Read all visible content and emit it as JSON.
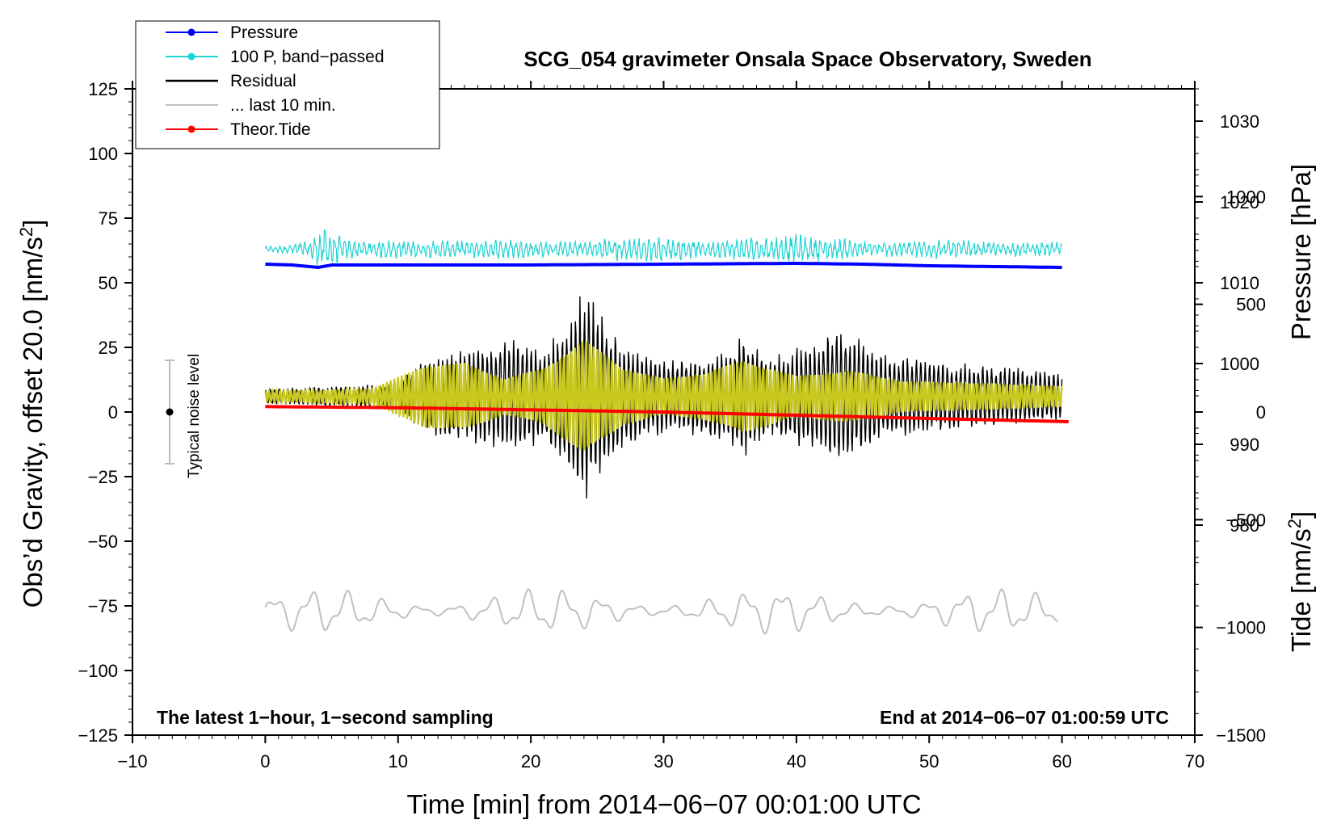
{
  "chart_data": {
    "type": "line",
    "title": "SCG_054 gravimeter Onsala Space Observatory, Sweden",
    "xlabel": "Time [min] from 2014−06−07 00:01:00 UTC",
    "ylabel_left": "Obs’d Gravity, offset 20.0 [nm/s²]",
    "ylabel_left_main": "Obs’d Gravity, offset 20.0 [nm/s",
    "ylabel_left_sup": "2",
    "ylabel_left_end": "]",
    "ylabel_pressure": "Pressure [hPa]",
    "ylabel_tide": "Tide [nm/s²]",
    "ylabel_tide_main": "Tide [nm/s",
    "ylabel_tide_sup": "2",
    "ylabel_tide_end": "]",
    "xlim": [
      -10,
      70
    ],
    "ylim_left": [
      -125,
      125
    ],
    "ylim_pressure": [
      954,
      1034
    ],
    "ylim_tide": [
      -1500,
      1500
    ],
    "x_ticks": [
      -10,
      0,
      10,
      20,
      30,
      40,
      50,
      60,
      70
    ],
    "x_tick_labels": [
      "−10",
      "0",
      "10",
      "20",
      "30",
      "40",
      "50",
      "60",
      "70"
    ],
    "y_ticks_left": [
      125,
      100,
      75,
      50,
      25,
      0,
      -25,
      -50,
      -75,
      -100,
      -125
    ],
    "y_tick_labels_left": [
      "125",
      "100",
      "75",
      "50",
      "25",
      "0",
      "−25",
      "−50",
      "−75",
      "−100",
      "−125"
    ],
    "y_ticks_pressure": [
      1030,
      1020,
      1010,
      1000,
      990,
      980
    ],
    "y_tick_labels_pressure": [
      "1030",
      "1020",
      "1010",
      "1000",
      "990",
      "980"
    ],
    "y_ticks_tide": [
      1000,
      500,
      0,
      -500,
      -1000,
      -1500
    ],
    "y_tick_labels_tide": [
      "1000",
      "500",
      "0",
      "−500",
      "−1000",
      "−1500"
    ],
    "legend": [
      {
        "label": "Pressure",
        "color": "#0000ff",
        "marker": true
      },
      {
        "label": "100 P, band−passed",
        "color": "#1fd3d3",
        "marker": true
      },
      {
        "label": "Residual",
        "color": "#000000",
        "marker": false
      },
      {
        "label": "... last 10 min.",
        "color": "#c0c0c0",
        "marker": false
      },
      {
        "label": "Theor.Tide",
        "color": "#ff0000",
        "marker": true
      }
    ],
    "legend_position": "top-left",
    "noise_bar": {
      "label": "Typical noise level",
      "x": -7.2,
      "center": 0,
      "low": -20,
      "high": 20
    },
    "annotation_left": "The latest 1−hour, 1−second sampling",
    "annotation_right": "End at 2014−06−07 01:00:59 UTC",
    "series": [
      {
        "name": "Pressure",
        "axis": "pressure",
        "color": "#0000ff",
        "x": [
          0,
          2,
          4,
          5,
          10,
          20,
          30,
          40,
          45,
          50,
          55,
          60
        ],
        "y": [
          1012.3,
          1012.2,
          1011.9,
          1012.2,
          1012.2,
          1012.2,
          1012.3,
          1012.4,
          1012.3,
          1012.1,
          1012.0,
          1011.9
        ]
      },
      {
        "name": "100 P, band−passed",
        "axis": "left",
        "color": "#1fd3d3",
        "offset": 63,
        "envelope_x": [
          0,
          3,
          4.5,
          6,
          12,
          18,
          24,
          26,
          30,
          33,
          40,
          46,
          50,
          55,
          60
        ],
        "envelope_y": [
          1.0,
          3.0,
          9.0,
          4.0,
          3.5,
          4.0,
          3.0,
          5.0,
          5.0,
          3.5,
          6.0,
          3.0,
          4.0,
          3.0,
          3.0
        ]
      },
      {
        "name": "Residual",
        "axis": "left",
        "color": "#000000",
        "offset": 6,
        "envelope_x": [
          0,
          5,
          10,
          12,
          16,
          19,
          21,
          23,
          24,
          25,
          27,
          29,
          32,
          35,
          36,
          38,
          41,
          43,
          44,
          46,
          50,
          55,
          60
        ],
        "envelope_y": [
          3,
          4,
          5,
          15,
          20,
          23,
          18,
          32,
          42,
          35,
          20,
          16,
          15,
          18,
          26,
          15,
          22,
          26,
          25,
          18,
          14,
          12,
          10
        ]
      },
      {
        "name": "Yellow trace",
        "axis": "left",
        "color": "#c8c81e",
        "offset": 6,
        "envelope_x": [
          0,
          8,
          12,
          15,
          18,
          21,
          24,
          27,
          30,
          33,
          36,
          40,
          44,
          48,
          55,
          60
        ],
        "envelope_y": [
          2,
          3,
          12,
          13,
          7,
          11,
          22,
          11,
          7,
          9,
          14,
          8,
          10,
          6,
          5,
          4
        ]
      },
      {
        "name": "Theor.Tide",
        "axis": "tide",
        "color": "#ff0000",
        "x": [
          0,
          10,
          20,
          30,
          40,
          50,
          60.5
        ],
        "y": [
          25,
          20,
          10,
          0,
          -15,
          -30,
          -45
        ]
      },
      {
        "name": "... last 10 min.",
        "axis": "left",
        "color": "#c0c0c0",
        "offset": -77,
        "amplitude": 9
      }
    ]
  }
}
